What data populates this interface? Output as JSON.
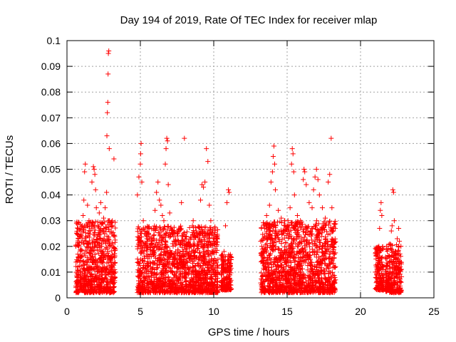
{
  "chart_data": {
    "type": "scatter",
    "title": "Day 194 of 2019, Rate Of TEC Index for receiver mlap",
    "xlabel": "GPS time / hours",
    "ylabel": "ROTI / TECUs",
    "xlim": [
      0,
      25
    ],
    "ylim": [
      0,
      0.1
    ],
    "xticks": [
      0,
      5,
      10,
      15,
      20,
      25
    ],
    "yticks": [
      0,
      0.01,
      0.02,
      0.03,
      0.04,
      0.05,
      0.06,
      0.07,
      0.08,
      0.09,
      0.1
    ],
    "xtick_labels": [
      "0",
      "5",
      "10",
      "15",
      "20",
      "25"
    ],
    "ytick_labels": [
      "0",
      "0.01",
      "0.02",
      "0.03",
      "0.04",
      "0.05",
      "0.06",
      "0.07",
      "0.08",
      "0.09",
      "0.1"
    ],
    "grid": true,
    "marker": "+",
    "color": "#ff0000",
    "series": [
      {
        "name": "ROTI",
        "points": [
          [
            0.7,
            0.006
          ],
          [
            0.75,
            0.012
          ],
          [
            0.8,
            0.02
          ],
          [
            0.85,
            0.024
          ],
          [
            0.9,
            0.009
          ],
          [
            1.0,
            0.016
          ],
          [
            1.05,
            0.028
          ],
          [
            1.1,
            0.032
          ],
          [
            1.15,
            0.038
          ],
          [
            1.2,
            0.049
          ],
          [
            1.25,
            0.052
          ],
          [
            1.3,
            0.022
          ],
          [
            1.4,
            0.036
          ],
          [
            1.5,
            0.03
          ],
          [
            1.6,
            0.026
          ],
          [
            1.7,
            0.045
          ],
          [
            1.8,
            0.051
          ],
          [
            1.85,
            0.05
          ],
          [
            1.9,
            0.048
          ],
          [
            1.95,
            0.042
          ],
          [
            2.0,
            0.035
          ],
          [
            2.1,
            0.028
          ],
          [
            2.2,
            0.033
          ],
          [
            2.3,
            0.037
          ],
          [
            2.4,
            0.029
          ],
          [
            2.5,
            0.031
          ],
          [
            2.6,
            0.035
          ],
          [
            2.65,
            0.022
          ],
          [
            2.7,
            0.041
          ],
          [
            2.72,
            0.063
          ],
          [
            2.75,
            0.072
          ],
          [
            2.78,
            0.076
          ],
          [
            2.8,
            0.087
          ],
          [
            2.82,
            0.095
          ],
          [
            2.85,
            0.096
          ],
          [
            2.88,
            0.058
          ],
          [
            2.9,
            0.03
          ],
          [
            3.0,
            0.015
          ],
          [
            3.1,
            0.012
          ],
          [
            3.2,
            0.054
          ],
          [
            3.3,
            0.01
          ],
          [
            4.8,
            0.04
          ],
          [
            4.9,
            0.047
          ],
          [
            5.0,
            0.052
          ],
          [
            5.02,
            0.056
          ],
          [
            5.05,
            0.06
          ],
          [
            5.1,
            0.045
          ],
          [
            5.2,
            0.03
          ],
          [
            5.3,
            0.025
          ],
          [
            5.4,
            0.02
          ],
          [
            5.6,
            0.016
          ],
          [
            5.8,
            0.022
          ],
          [
            6.0,
            0.034
          ],
          [
            6.1,
            0.041
          ],
          [
            6.2,
            0.045
          ],
          [
            6.3,
            0.038
          ],
          [
            6.4,
            0.036
          ],
          [
            6.5,
            0.032
          ],
          [
            6.6,
            0.03
          ],
          [
            6.7,
            0.052
          ],
          [
            6.75,
            0.058
          ],
          [
            6.8,
            0.062
          ],
          [
            6.85,
            0.061
          ],
          [
            6.9,
            0.044
          ],
          [
            7.0,
            0.033
          ],
          [
            7.2,
            0.025
          ],
          [
            7.4,
            0.018
          ],
          [
            7.6,
            0.022
          ],
          [
            7.8,
            0.037
          ],
          [
            8.0,
            0.062
          ],
          [
            8.2,
            0.02
          ],
          [
            8.4,
            0.016
          ],
          [
            8.6,
            0.03
          ],
          [
            8.8,
            0.026
          ],
          [
            9.0,
            0.025
          ],
          [
            9.1,
            0.038
          ],
          [
            9.2,
            0.044
          ],
          [
            9.3,
            0.043
          ],
          [
            9.4,
            0.045
          ],
          [
            9.5,
            0.058
          ],
          [
            9.6,
            0.053
          ],
          [
            9.7,
            0.036
          ],
          [
            9.8,
            0.03
          ],
          [
            9.9,
            0.025
          ],
          [
            10.0,
            0.022
          ],
          [
            10.6,
            0.016
          ],
          [
            10.7,
            0.018
          ],
          [
            10.8,
            0.028
          ],
          [
            10.9,
            0.037
          ],
          [
            11.0,
            0.042
          ],
          [
            11.05,
            0.041
          ],
          [
            11.1,
            0.012
          ],
          [
            13.2,
            0.022
          ],
          [
            13.4,
            0.028
          ],
          [
            13.6,
            0.032
          ],
          [
            13.8,
            0.036
          ],
          [
            13.9,
            0.045
          ],
          [
            14.0,
            0.049
          ],
          [
            14.05,
            0.055
          ],
          [
            14.1,
            0.059
          ],
          [
            14.15,
            0.052
          ],
          [
            14.2,
            0.042
          ],
          [
            14.4,
            0.034
          ],
          [
            14.6,
            0.031
          ],
          [
            14.8,
            0.026
          ],
          [
            15.0,
            0.028
          ],
          [
            15.2,
            0.035
          ],
          [
            15.3,
            0.052
          ],
          [
            15.35,
            0.058
          ],
          [
            15.4,
            0.056
          ],
          [
            15.45,
            0.049
          ],
          [
            15.5,
            0.04
          ],
          [
            15.7,
            0.032
          ],
          [
            15.9,
            0.03
          ],
          [
            16.1,
            0.046
          ],
          [
            16.15,
            0.05
          ],
          [
            16.2,
            0.049
          ],
          [
            16.3,
            0.044
          ],
          [
            16.5,
            0.037
          ],
          [
            16.7,
            0.035
          ],
          [
            16.8,
            0.042
          ],
          [
            16.9,
            0.047
          ],
          [
            17.0,
            0.05
          ],
          [
            17.1,
            0.046
          ],
          [
            17.2,
            0.04
          ],
          [
            17.4,
            0.035
          ],
          [
            17.6,
            0.031
          ],
          [
            17.8,
            0.045
          ],
          [
            17.9,
            0.048
          ],
          [
            18.0,
            0.062
          ],
          [
            18.05,
            0.035
          ],
          [
            18.1,
            0.02
          ],
          [
            21.1,
            0.004
          ],
          [
            21.2,
            0.011
          ],
          [
            21.25,
            0.02
          ],
          [
            21.3,
            0.027
          ],
          [
            21.35,
            0.034
          ],
          [
            21.4,
            0.037
          ],
          [
            21.45,
            0.032
          ],
          [
            21.5,
            0.012
          ],
          [
            21.8,
            0.005
          ],
          [
            21.9,
            0.016
          ],
          [
            22.0,
            0.021
          ],
          [
            22.1,
            0.026
          ],
          [
            22.15,
            0.028
          ],
          [
            22.2,
            0.042
          ],
          [
            22.25,
            0.041
          ],
          [
            22.3,
            0.03
          ],
          [
            22.4,
            0.018
          ],
          [
            22.5,
            0.023
          ],
          [
            22.6,
            0.027
          ],
          [
            22.65,
            0.022
          ],
          [
            22.7,
            0.012
          ],
          [
            22.75,
            0.003
          ]
        ],
        "dense_bands": [
          {
            "x_range": [
              0.6,
              3.3
            ],
            "y_range": [
              0.002,
              0.03
            ]
          },
          {
            "x_range": [
              4.8,
              10.3
            ],
            "y_range": [
              0.002,
              0.028
            ]
          },
          {
            "x_range": [
              10.5,
              11.2
            ],
            "y_range": [
              0.003,
              0.017
            ]
          },
          {
            "x_range": [
              13.2,
              18.3
            ],
            "y_range": [
              0.002,
              0.03
            ]
          },
          {
            "x_range": [
              21.0,
              21.6
            ],
            "y_range": [
              0.003,
              0.02
            ]
          },
          {
            "x_range": [
              21.7,
              22.8
            ],
            "y_range": [
              0.002,
              0.021
            ]
          }
        ]
      }
    ]
  }
}
